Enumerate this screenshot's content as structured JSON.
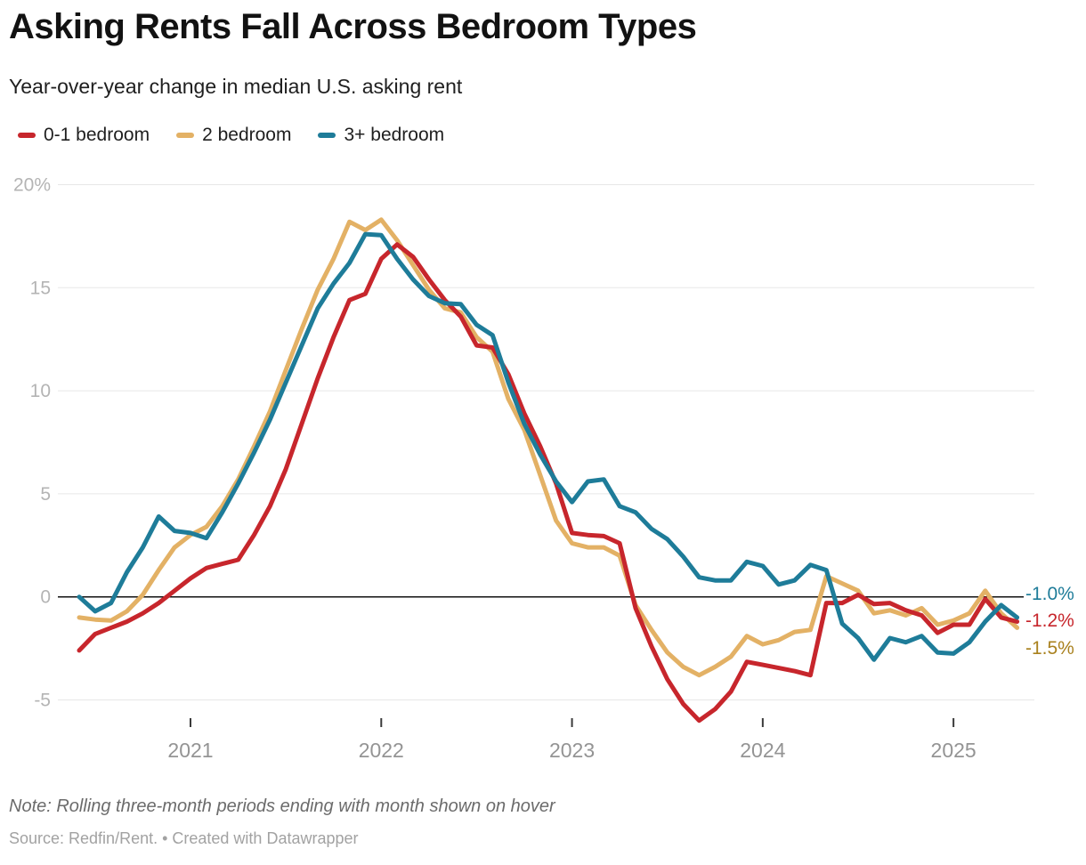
{
  "header": {
    "title": "Asking Rents Fall Across Bedroom Types",
    "subtitle": "Year-over-year change in median U.S. asking rent"
  },
  "legend": {
    "items": [
      {
        "label": "0-1 bedroom",
        "color": "#c7262c"
      },
      {
        "label": "2 bedroom",
        "color": "#e3b165"
      },
      {
        "label": "3+ bedroom",
        "color": "#1e7c99"
      }
    ]
  },
  "chart_data": {
    "type": "line",
    "title": "Asking Rents Fall Across Bedroom Types",
    "subtitle": "Year-over-year change in median U.S. asking rent",
    "unit": "percent",
    "x": [
      "2020-06",
      "2020-07",
      "2020-08",
      "2020-09",
      "2020-10",
      "2020-11",
      "2020-12",
      "2021-01",
      "2021-02",
      "2021-03",
      "2021-04",
      "2021-05",
      "2021-06",
      "2021-07",
      "2021-08",
      "2021-09",
      "2021-10",
      "2021-11",
      "2021-12",
      "2022-01",
      "2022-02",
      "2022-03",
      "2022-04",
      "2022-05",
      "2022-06",
      "2022-07",
      "2022-08",
      "2022-09",
      "2022-10",
      "2022-11",
      "2022-12",
      "2023-01",
      "2023-02",
      "2023-03",
      "2023-04",
      "2023-05",
      "2023-06",
      "2023-07",
      "2023-08",
      "2023-09",
      "2023-10",
      "2023-11",
      "2023-12",
      "2024-01",
      "2024-02",
      "2024-03",
      "2024-04",
      "2024-05",
      "2024-06",
      "2024-07",
      "2024-08",
      "2024-09",
      "2024-10",
      "2024-11",
      "2024-12",
      "2025-01",
      "2025-02",
      "2025-03",
      "2025-04",
      "2025-05"
    ],
    "series": [
      {
        "name": "0-1 bedroom",
        "color": "#c7262c",
        "values": [
          -2.6,
          -1.8,
          -1.5,
          -1.2,
          -0.8,
          -0.3,
          0.3,
          0.9,
          1.4,
          1.6,
          1.8,
          3.0,
          4.4,
          6.2,
          8.4,
          10.6,
          12.6,
          14.4,
          14.7,
          16.4,
          17.1,
          16.5,
          15.4,
          14.4,
          13.6,
          12.2,
          12.1,
          10.8,
          8.9,
          7.3,
          5.5,
          3.1,
          3.0,
          2.95,
          2.6,
          -0.55,
          -2.4,
          -4.0,
          -5.2,
          -6.0,
          -5.45,
          -4.6,
          -3.15,
          -3.3,
          -3.45,
          -3.6,
          -3.8,
          -0.3,
          -0.3,
          0.1,
          -0.35,
          -0.3,
          -0.65,
          -0.9,
          -1.75,
          -1.35,
          -1.35,
          -0.1,
          -1.0,
          -1.2
        ]
      },
      {
        "name": "2 bedroom",
        "color": "#e3b165",
        "values": [
          -1.0,
          -1.1,
          -1.15,
          -0.7,
          0.1,
          1.3,
          2.4,
          3.0,
          3.4,
          4.4,
          5.7,
          7.3,
          9.0,
          11.0,
          13.0,
          14.9,
          16.4,
          18.2,
          17.8,
          18.3,
          17.3,
          16.1,
          14.9,
          14.0,
          13.8,
          12.6,
          11.9,
          9.6,
          8.1,
          5.9,
          3.7,
          2.6,
          2.4,
          2.4,
          2.0,
          -0.4,
          -1.6,
          -2.7,
          -3.4,
          -3.8,
          -3.4,
          -2.9,
          -1.9,
          -2.3,
          -2.1,
          -1.7,
          -1.6,
          1.0,
          0.65,
          0.3,
          -0.8,
          -0.65,
          -0.9,
          -0.55,
          -1.35,
          -1.15,
          -0.8,
          0.3,
          -0.8,
          -1.5
        ]
      },
      {
        "name": "3+ bedroom",
        "color": "#1e7c99",
        "values": [
          0.0,
          -0.7,
          -0.3,
          1.2,
          2.4,
          3.9,
          3.2,
          3.1,
          2.85,
          4.1,
          5.5,
          7.0,
          8.6,
          10.4,
          12.2,
          14.0,
          15.2,
          16.2,
          17.6,
          17.55,
          16.4,
          15.4,
          14.6,
          14.25,
          14.2,
          13.2,
          12.7,
          10.4,
          8.4,
          6.9,
          5.6,
          4.6,
          5.6,
          5.7,
          4.4,
          4.1,
          3.3,
          2.8,
          1.95,
          0.95,
          0.8,
          0.8,
          1.7,
          1.5,
          0.6,
          0.8,
          1.55,
          1.3,
          -1.3,
          -2.0,
          -3.05,
          -2.0,
          -2.2,
          -1.9,
          -2.7,
          -2.75,
          -2.2,
          -1.2,
          -0.4,
          -1.0
        ]
      }
    ],
    "draw_order": [
      1,
      0,
      2
    ],
    "y_axis": {
      "range": [
        -7,
        20.8
      ],
      "ticks": [
        {
          "value": 20,
          "label": "20%"
        },
        {
          "value": 15,
          "label": "15"
        },
        {
          "value": 10,
          "label": "10"
        },
        {
          "value": 5,
          "label": "5"
        },
        {
          "value": 0,
          "label": "0"
        },
        {
          "value": -5,
          "label": "-5"
        }
      ],
      "zero_baseline": true,
      "grid": true
    },
    "x_axis": {
      "tick_labels": [
        "2021",
        "2022",
        "2023",
        "2024",
        "2025"
      ],
      "tick_month": "01"
    },
    "end_labels": [
      {
        "text": "-1.0%",
        "color": "#1e7c99",
        "series": "3+ bedroom"
      },
      {
        "text": "-1.2%",
        "color": "#c7262c",
        "series": "0-1 bedroom"
      },
      {
        "text": "-1.5%",
        "color": "#a9811e",
        "series": "2 bedroom"
      }
    ]
  },
  "footer": {
    "note": "Note: Rolling three-month periods ending with month shown on hover",
    "source": "Source: Redfin/Rent. • Created with Datawrapper"
  }
}
